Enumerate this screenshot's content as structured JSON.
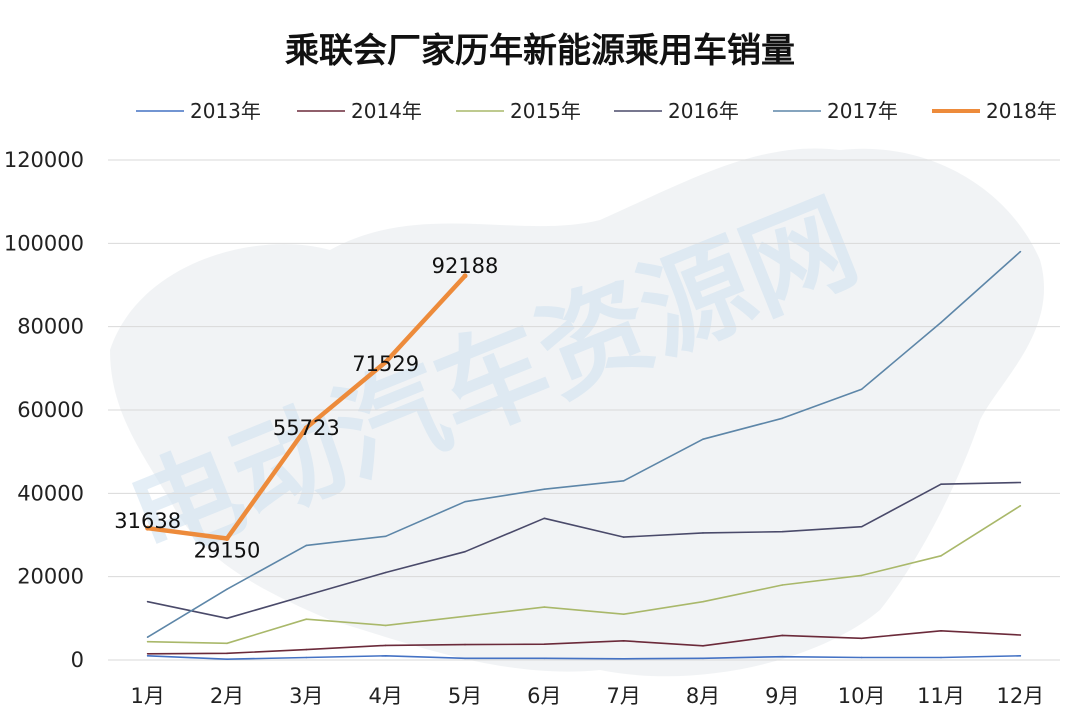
{
  "watermark": "电动汽车资源网",
  "chart_data": {
    "type": "line",
    "title": "乘联会厂家历年新能源乘用车销量",
    "xlabel": "",
    "ylabel": "",
    "categories": [
      "1月",
      "2月",
      "3月",
      "4月",
      "5月",
      "6月",
      "7月",
      "8月",
      "9月",
      "10月",
      "11月",
      "12月"
    ],
    "ylim": [
      0,
      120000
    ],
    "y_ticks": [
      "0",
      "20000",
      "40000",
      "60000",
      "80000",
      "100000",
      "120000"
    ],
    "grid": "horizontal",
    "legend_position": "top",
    "series": [
      {
        "name": "2013年",
        "color": "#4472c4",
        "values": [
          1000,
          200,
          600,
          1000,
          400,
          400,
          300,
          400,
          800,
          600,
          600,
          1000
        ]
      },
      {
        "name": "2014年",
        "color": "#6b2a3a",
        "values": [
          1500,
          1600,
          2500,
          3500,
          3700,
          3800,
          4600,
          3400,
          5900,
          5200,
          7000,
          6000
        ]
      },
      {
        "name": "2015年",
        "color": "#a9b86a",
        "values": [
          4400,
          4000,
          9800,
          8300,
          10500,
          12700,
          11000,
          14000,
          18000,
          20300,
          25000,
          37000
        ]
      },
      {
        "name": "2016年",
        "color": "#4a4a6a",
        "values": [
          14000,
          10000,
          15500,
          21000,
          26000,
          34000,
          29500,
          30500,
          30800,
          32000,
          42200,
          42600
        ]
      },
      {
        "name": "2017年",
        "color": "#5d86a8",
        "values": [
          5500,
          17000,
          27500,
          29700,
          38000,
          41000,
          43000,
          53000,
          58000,
          65000,
          81000,
          98000
        ]
      },
      {
        "name": "2018年",
        "color": "#ed8b3b",
        "values": [
          31638,
          29150,
          55723,
          71529,
          92188,
          null,
          null,
          null,
          null,
          null,
          null,
          null
        ],
        "data_labels": [
          "31638",
          "29150",
          "55723",
          "71529",
          "92188"
        ]
      }
    ]
  }
}
